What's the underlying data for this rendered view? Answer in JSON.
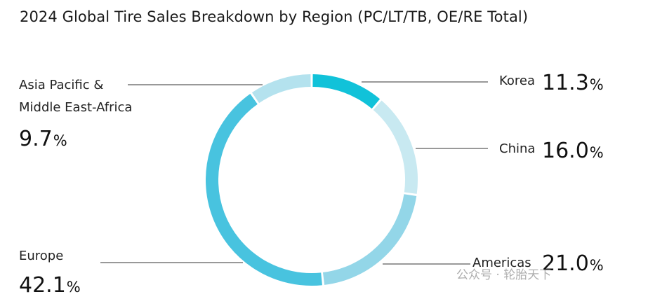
{
  "title": "2024 Global Tire Sales Breakdown by Region (PC/LT/TB, OE/RE Total)",
  "chart_data": {
    "type": "pie",
    "subtype": "donut",
    "categories": [
      "Korea",
      "China",
      "Americas",
      "Europe",
      "Asia Pacific & Middle East-Africa"
    ],
    "values": [
      11.3,
      16.0,
      21.0,
      42.1,
      9.7
    ],
    "unit": "%",
    "colors": [
      "#11C2D9",
      "#C8E9F1",
      "#93D6E8",
      "#48C3DF",
      "#B4E2EE"
    ]
  },
  "labels": {
    "korea": "Korea",
    "china": "China",
    "americas": "Americas",
    "europe": "Europe",
    "apmea_line1": "Asia Pacific &",
    "apmea_line2": "Middle East-Africa"
  },
  "values_text": {
    "korea": "11.3",
    "china": "16.0",
    "americas": "21.0",
    "europe": "42.1",
    "apmea": "9.7",
    "percent_sign": "%"
  },
  "watermark": {
    "right": "公众号 · 轮胎天下"
  }
}
